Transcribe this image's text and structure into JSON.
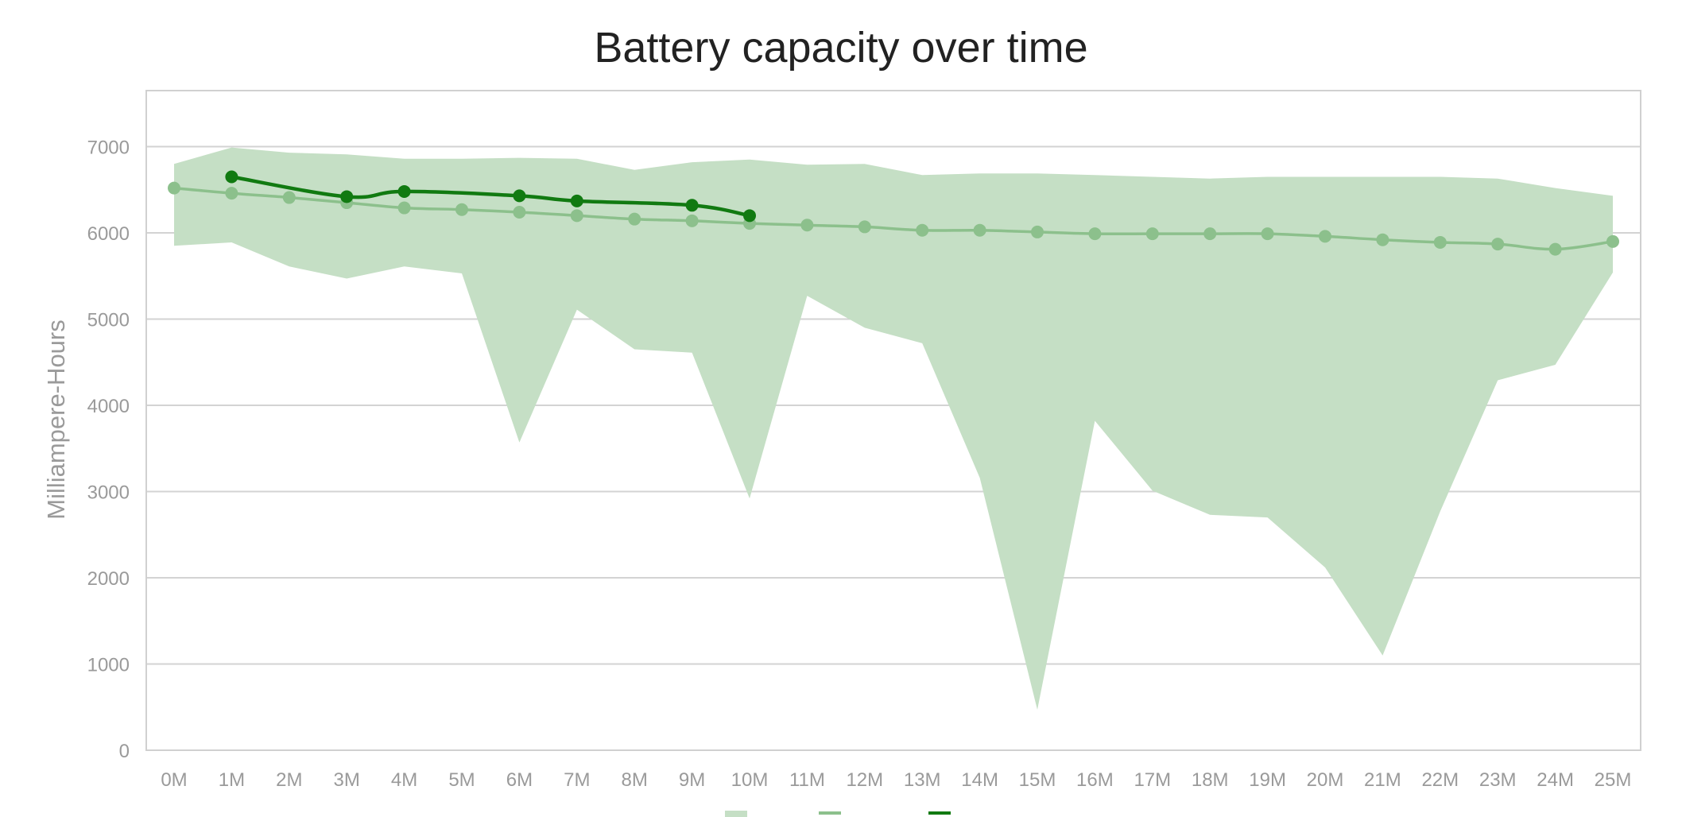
{
  "chart_data": {
    "type": "line",
    "title": "Battery capacity over time",
    "xlabel": "",
    "ylabel": "Milliampere-Hours",
    "ylim": [
      0,
      7650
    ],
    "y_ticks": [
      0,
      1000,
      2000,
      3000,
      4000,
      5000,
      6000,
      7000
    ],
    "grid": true,
    "legend_position": "bottom",
    "categories": [
      "0M",
      "1M",
      "2M",
      "3M",
      "4M",
      "5M",
      "6M",
      "7M",
      "8M",
      "9M",
      "10M",
      "11M",
      "12M",
      "13M",
      "14M",
      "15M",
      "16M",
      "17M",
      "18M",
      "19M",
      "20M",
      "21M",
      "22M",
      "23M",
      "24M",
      "25M"
    ],
    "series": [
      {
        "kind": "range",
        "color": "#c5dfc5",
        "upper": [
          6800,
          6990,
          6930,
          6910,
          6860,
          6860,
          6870,
          6860,
          6730,
          6820,
          6850,
          6790,
          6800,
          6670,
          6690,
          6690,
          6670,
          6650,
          6630,
          6650,
          6650,
          6650,
          6650,
          6630,
          6520,
          6430
        ],
        "lower": [
          5850,
          5890,
          5610,
          5470,
          5610,
          5530,
          3570,
          5110,
          4650,
          4610,
          2920,
          5270,
          4900,
          4720,
          3160,
          470,
          3820,
          3010,
          2730,
          2700,
          2120,
          1100,
          2770,
          4290,
          4470,
          5540
        ]
      },
      {
        "kind": "line",
        "color": "#8cc08c",
        "values": [
          6520,
          6460,
          6410,
          6350,
          6290,
          6270,
          6240,
          6200,
          6160,
          6140,
          6110,
          6090,
          6070,
          6030,
          6030,
          6010,
          5990,
          5990,
          5990,
          5990,
          5960,
          5920,
          5890,
          5870,
          5810,
          5900
        ]
      },
      {
        "kind": "line",
        "color": "#117a11",
        "values": [
          null,
          6650,
          null,
          6420,
          6480,
          null,
          6430,
          6370,
          null,
          6320,
          6200,
          null,
          null,
          null,
          null,
          null,
          null,
          null,
          null,
          null,
          null,
          null,
          null,
          null,
          null,
          null
        ]
      }
    ]
  }
}
